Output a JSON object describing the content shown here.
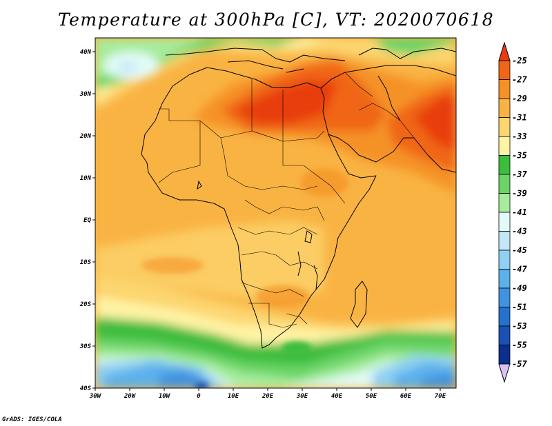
{
  "title": "Temperature at 300hPa [C], VT: 2020070618",
  "credit": "GrADS: IGES/COLA",
  "map": {
    "type": "filled-contour",
    "lon_range": [
      -30,
      75
    ],
    "lat_range": [
      -40,
      45
    ],
    "lon_ticks": [
      "30W",
      "20W",
      "10W",
      "0",
      "10E",
      "20E",
      "30E",
      "40E",
      "50E",
      "60E",
      "70E"
    ],
    "lat_ticks": [
      "40S",
      "30S",
      "20S",
      "10S",
      "EQ",
      "10N",
      "20N",
      "30N",
      "40N"
    ]
  },
  "legend": {
    "labels": [
      "-25",
      "-27",
      "-29",
      "-31",
      "-33",
      "-35",
      "-37",
      "-39",
      "-41",
      "-43",
      "-45",
      "-47",
      "-49",
      "-51",
      "-53",
      "-55",
      "-57"
    ],
    "colors": [
      "#e83c0c",
      "#f06616",
      "#f59225",
      "#f9b343",
      "#fcd66f",
      "#fff3a4",
      "#3cbd3c",
      "#6bd466",
      "#a6ec9c",
      "#e2fbf6",
      "#c3e7f9",
      "#8fd0f3",
      "#5cb1eb",
      "#3f93e0",
      "#2471d0",
      "#1a51b4",
      "#0c2f8e",
      "#d8c4f4"
    ]
  }
}
